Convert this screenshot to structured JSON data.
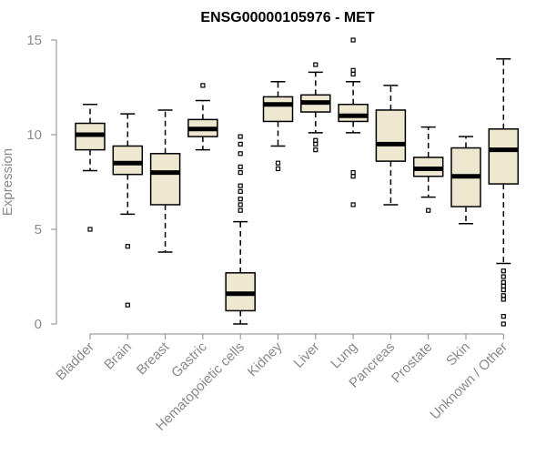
{
  "chart_data": {
    "type": "boxplot",
    "title": "ENSG00000105976 - MET",
    "xlabel": "",
    "ylabel": "Expression",
    "ylim": [
      0,
      15
    ],
    "yticks": [
      0,
      5,
      10,
      15
    ],
    "colors": {
      "box_fill": "#efe8d0",
      "box_stroke": "#000000",
      "axis": "#8a8a8a"
    },
    "categories": [
      "Bladder",
      "Brain",
      "Breast",
      "Gastric",
      "Hematopoietic cells",
      "Kidney",
      "Liver",
      "Lung",
      "Pancreas",
      "Prostate",
      "Skin",
      "Unknown / Other"
    ],
    "boxes": [
      {
        "label": "Bladder",
        "whisker_low": 8.1,
        "q1": 9.2,
        "median": 10.0,
        "q3": 10.6,
        "whisker_high": 11.6,
        "outliers": [
          5.0
        ]
      },
      {
        "label": "Brain",
        "whisker_low": 5.8,
        "q1": 7.9,
        "median": 8.5,
        "q3": 9.4,
        "whisker_high": 11.1,
        "outliers": [
          4.1,
          1.0
        ]
      },
      {
        "label": "Breast",
        "whisker_low": 3.8,
        "q1": 6.3,
        "median": 8.0,
        "q3": 9.0,
        "whisker_high": 11.3,
        "outliers": []
      },
      {
        "label": "Gastric",
        "whisker_low": 9.2,
        "q1": 9.9,
        "median": 10.3,
        "q3": 10.8,
        "whisker_high": 11.8,
        "outliers": [
          12.6
        ]
      },
      {
        "label": "Hematopoietic cells",
        "whisker_low": 0.0,
        "q1": 0.7,
        "median": 1.6,
        "q3": 2.7,
        "whisker_high": 5.4,
        "outliers": [
          6.0,
          6.3,
          6.6,
          7.0,
          7.3,
          8.0,
          8.3,
          9.0,
          9.5,
          9.9
        ]
      },
      {
        "label": "Kidney",
        "whisker_low": 9.4,
        "q1": 10.7,
        "median": 11.6,
        "q3": 12.0,
        "whisker_high": 12.8,
        "outliers": [
          8.5,
          8.2
        ]
      },
      {
        "label": "Liver",
        "whisker_low": 10.1,
        "q1": 11.2,
        "median": 11.7,
        "q3": 12.1,
        "whisker_high": 13.3,
        "outliers": [
          13.7,
          9.7,
          9.5,
          9.2
        ]
      },
      {
        "label": "Lung",
        "whisker_low": 10.1,
        "q1": 10.7,
        "median": 11.0,
        "q3": 11.6,
        "whisker_high": 12.8,
        "outliers": [
          15.0,
          13.4,
          13.2,
          8.0,
          7.8,
          6.3
        ]
      },
      {
        "label": "Pancreas",
        "whisker_low": 6.3,
        "q1": 8.6,
        "median": 9.5,
        "q3": 11.3,
        "whisker_high": 12.6,
        "outliers": []
      },
      {
        "label": "Prostate",
        "whisker_low": 6.7,
        "q1": 7.8,
        "median": 8.2,
        "q3": 8.8,
        "whisker_high": 10.4,
        "outliers": [
          6.0
        ]
      },
      {
        "label": "Skin",
        "whisker_low": 5.3,
        "q1": 6.2,
        "median": 7.8,
        "q3": 9.3,
        "whisker_high": 9.9,
        "outliers": []
      },
      {
        "label": "Unknown / Other",
        "whisker_low": 3.2,
        "q1": 7.4,
        "median": 9.2,
        "q3": 10.3,
        "whisker_high": 14.0,
        "outliers": [
          2.8,
          2.5,
          2.2,
          2.0,
          1.8,
          1.5,
          1.3,
          0.4,
          0.0
        ]
      }
    ]
  }
}
